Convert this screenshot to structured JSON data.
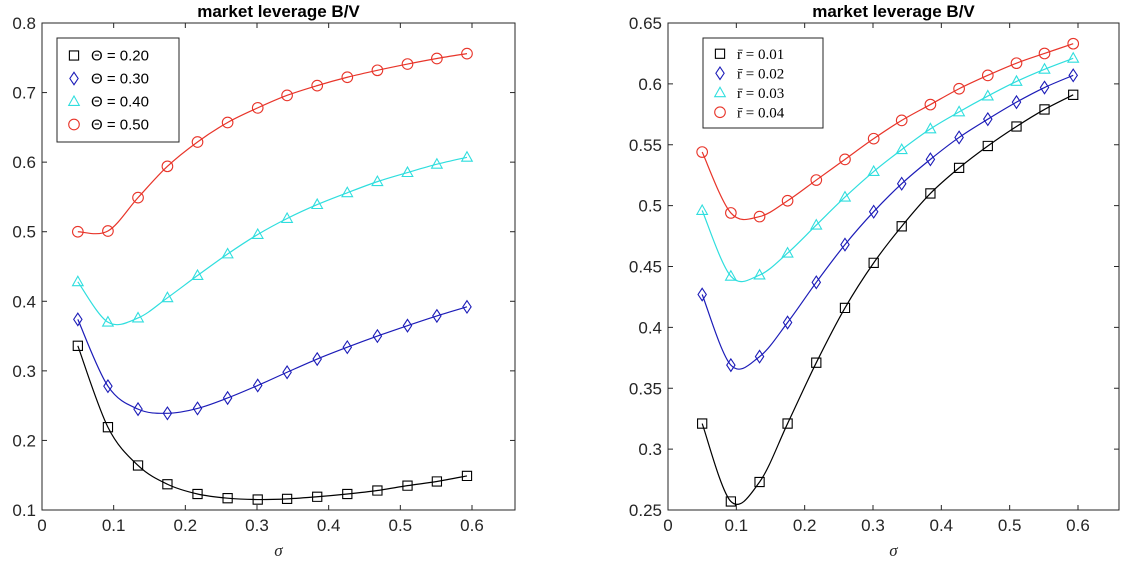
{
  "chart_data": [
    {
      "type": "line",
      "title": "market leverage  B/V",
      "xlabel": "σ",
      "ylabel": "",
      "xlim": [
        0,
        0.66
      ],
      "ylim": [
        0.1,
        0.8
      ],
      "xticks": [
        "0",
        "0.1",
        "0.2",
        "0.3",
        "0.4",
        "0.5",
        "0.6"
      ],
      "yticks": [
        "0.1",
        "0.2",
        "0.3",
        "0.4",
        "0.5",
        "0.6",
        "0.7",
        "0.8"
      ],
      "legend_position": "top-left",
      "x": [
        0.05,
        0.092,
        0.134,
        0.175,
        0.217,
        0.259,
        0.301,
        0.342,
        0.384,
        0.426,
        0.468,
        0.51,
        0.551,
        0.593
      ],
      "series": [
        {
          "name": "Θ = 0.20",
          "marker": "square",
          "color": "#000000",
          "values": [
            0.336,
            0.219,
            0.164,
            0.137,
            0.123,
            0.117,
            0.115,
            0.116,
            0.119,
            0.123,
            0.128,
            0.135,
            0.141,
            0.149
          ]
        },
        {
          "name": "Θ = 0.30",
          "marker": "diamond",
          "color": "#1c1cb8",
          "values": [
            0.374,
            0.278,
            0.245,
            0.239,
            0.246,
            0.261,
            0.279,
            0.298,
            0.317,
            0.334,
            0.35,
            0.365,
            0.379,
            0.392
          ]
        },
        {
          "name": "Θ = 0.40",
          "marker": "triangle",
          "color": "#2fdede",
          "values": [
            0.428,
            0.37,
            0.376,
            0.405,
            0.437,
            0.468,
            0.496,
            0.519,
            0.539,
            0.556,
            0.572,
            0.585,
            0.597,
            0.607
          ]
        },
        {
          "name": "Θ = 0.50",
          "marker": "circle",
          "color": "#e8352a",
          "values": [
            0.5,
            0.501,
            0.549,
            0.594,
            0.629,
            0.657,
            0.678,
            0.696,
            0.71,
            0.722,
            0.732,
            0.741,
            0.749,
            0.756
          ]
        }
      ]
    },
    {
      "type": "line",
      "title": "market leverage  B/V",
      "xlabel": "σ",
      "ylabel": "",
      "xlim": [
        0,
        0.66
      ],
      "ylim": [
        0.25,
        0.65
      ],
      "xticks": [
        "0",
        "0.1",
        "0.2",
        "0.3",
        "0.4",
        "0.5",
        "0.6"
      ],
      "yticks": [
        "0.25",
        "0.3",
        "0.35",
        "0.4",
        "0.45",
        "0.5",
        "0.55",
        "0.6",
        "0.65"
      ],
      "legend_position": "top-left",
      "x": [
        0.05,
        0.092,
        0.134,
        0.175,
        0.217,
        0.259,
        0.301,
        0.342,
        0.384,
        0.426,
        0.468,
        0.51,
        0.551,
        0.593
      ],
      "series": [
        {
          "name": "r̄ = 0.01",
          "marker": "square",
          "color": "#000000",
          "values": [
            0.321,
            0.257,
            0.273,
            0.321,
            0.371,
            0.416,
            0.453,
            0.483,
            0.51,
            0.531,
            0.549,
            0.565,
            0.579,
            0.591
          ]
        },
        {
          "name": "r̄ = 0.02",
          "marker": "diamond",
          "color": "#1c1cb8",
          "values": [
            0.427,
            0.369,
            0.376,
            0.404,
            0.437,
            0.468,
            0.495,
            0.518,
            0.538,
            0.556,
            0.571,
            0.585,
            0.597,
            0.607
          ]
        },
        {
          "name": "r̄ = 0.03",
          "marker": "triangle",
          "color": "#2fdede",
          "values": [
            0.496,
            0.442,
            0.443,
            0.461,
            0.484,
            0.507,
            0.528,
            0.546,
            0.563,
            0.577,
            0.59,
            0.602,
            0.612,
            0.621
          ]
        },
        {
          "name": "r̄ = 0.04",
          "marker": "circle",
          "color": "#e8352a",
          "values": [
            0.544,
            0.494,
            0.491,
            0.504,
            0.521,
            0.538,
            0.555,
            0.57,
            0.583,
            0.596,
            0.607,
            0.617,
            0.625,
            0.633
          ]
        }
      ]
    }
  ]
}
